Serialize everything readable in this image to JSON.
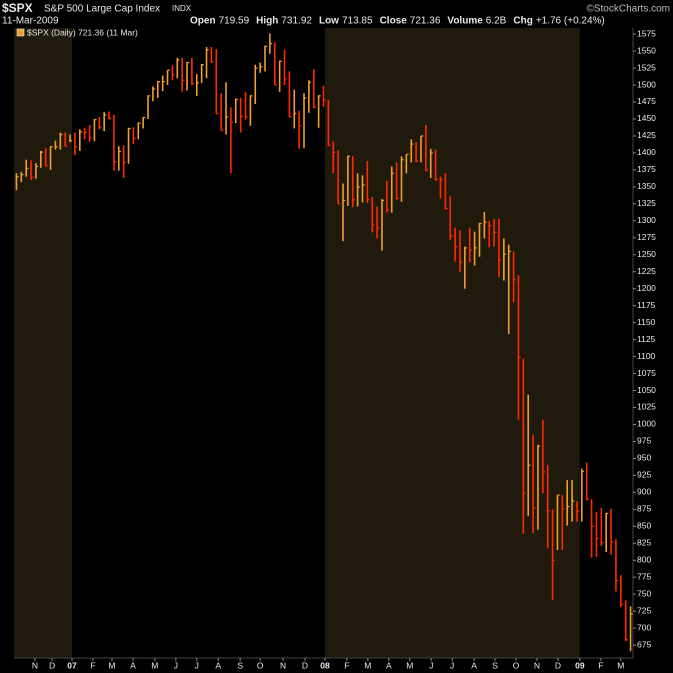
{
  "header": {
    "symbol": "$SPX",
    "name": "S&P 500 Large Cap Index",
    "exchange": "INDX",
    "date": "11-Mar-2009",
    "copyright": "©StockCharts.com",
    "quote": [
      [
        "Open",
        "719.59"
      ],
      [
        "High",
        "731.92"
      ],
      [
        "Low",
        "713.85"
      ],
      [
        "Close",
        "721.36"
      ],
      [
        "Volume",
        "6.2B"
      ],
      [
        "Chg",
        "+1.76 (+0.24%)"
      ]
    ]
  },
  "chart_data": {
    "type": "ohlc",
    "legend": "$SPX (Daily) 721.36 (11 Mar)",
    "colors": {
      "up": "#f0a030",
      "down": "#ff2a00",
      "shade": "#1f1a0c",
      "background": "#000000"
    },
    "grid": false,
    "ylim": [
      656,
      1584
    ],
    "yticks": [
      675,
      700,
      725,
      750,
      775,
      800,
      825,
      850,
      875,
      900,
      925,
      950,
      975,
      1000,
      1025,
      1050,
      1075,
      1100,
      1125,
      1150,
      1175,
      1200,
      1225,
      1250,
      1275,
      1300,
      1325,
      1350,
      1375,
      1400,
      1425,
      1450,
      1475,
      1500,
      1525,
      1550,
      1575
    ],
    "xlim": [
      0,
      127
    ],
    "xticks": [
      {
        "value": 4.3,
        "label": "N"
      },
      {
        "value": 7.8,
        "label": "D"
      },
      {
        "value": 11.9,
        "label": "07"
      },
      {
        "value": 16.2,
        "label": "F"
      },
      {
        "value": 20.1,
        "label": "M"
      },
      {
        "value": 24.4,
        "label": "A"
      },
      {
        "value": 28.9,
        "label": "M"
      },
      {
        "value": 33.2,
        "label": "J"
      },
      {
        "value": 37.5,
        "label": "J"
      },
      {
        "value": 41.9,
        "label": "A"
      },
      {
        "value": 46.4,
        "label": "S"
      },
      {
        "value": 50.5,
        "label": "O"
      },
      {
        "value": 55.2,
        "label": "N"
      },
      {
        "value": 59.7,
        "label": "D"
      },
      {
        "value": 63.8,
        "label": "08"
      },
      {
        "value": 68.3,
        "label": "F"
      },
      {
        "value": 72.6,
        "label": "M"
      },
      {
        "value": 76.9,
        "label": "A"
      },
      {
        "value": 81.2,
        "label": "M"
      },
      {
        "value": 85.6,
        "label": "J"
      },
      {
        "value": 89.9,
        "label": "J"
      },
      {
        "value": 94.4,
        "label": "A"
      },
      {
        "value": 98.7,
        "label": "S"
      },
      {
        "value": 103.0,
        "label": "O"
      },
      {
        "value": 107.3,
        "label": "N"
      },
      {
        "value": 111.6,
        "label": "D"
      },
      {
        "value": 116.1,
        "label": "09"
      },
      {
        "value": 120.4,
        "label": "F"
      },
      {
        "value": 124.5,
        "label": "M"
      }
    ],
    "high": [
      1370,
      1372,
      1390,
      1389,
      1385,
      1403,
      1407,
      1410,
      1418,
      1430,
      1430,
      1427,
      1430,
      1435,
      1437,
      1441,
      1450,
      1453,
      1460,
      1461,
      1456,
      1410,
      1411,
      1437,
      1438,
      1445,
      1453,
      1485,
      1498,
      1506,
      1514,
      1522,
      1529,
      1540,
      1540,
      1534,
      1540,
      1516,
      1531,
      1556,
      1556,
      1553,
      1488,
      1504,
      1467,
      1480,
      1481,
      1490,
      1485,
      1530,
      1533,
      1558,
      1576,
      1563,
      1536,
      1552,
      1520,
      1493,
      1462,
      1488,
      1507,
      1523,
      1485,
      1499,
      1478,
      1417,
      1404,
      1355,
      1396,
      1395,
      1370,
      1367,
      1388,
      1335,
      1321,
      1332,
      1359,
      1380,
      1386,
      1395,
      1398,
      1420,
      1416,
      1425,
      1441,
      1406,
      1405,
      1365,
      1370,
      1336,
      1290,
      1286,
      1262,
      1290,
      1284,
      1297,
      1313,
      1300,
      1303,
      1303,
      1274,
      1265,
      1255,
      1220,
      1097,
      1044,
      985,
      970,
      1007,
      940,
      875,
      896,
      896,
      918,
      918,
      887,
      935,
      944,
      890,
      871,
      877,
      870,
      876,
      831,
      778,
      741,
      732
    ],
    "low": [
      1345,
      1357,
      1365,
      1360,
      1362,
      1378,
      1380,
      1375,
      1405,
      1405,
      1410,
      1416,
      1397,
      1403,
      1420,
      1416,
      1417,
      1435,
      1432,
      1449,
      1374,
      1374,
      1363,
      1384,
      1413,
      1420,
      1436,
      1450,
      1476,
      1481,
      1491,
      1500,
      1507,
      1510,
      1490,
      1492,
      1500,
      1484,
      1503,
      1510,
      1533,
      1458,
      1433,
      1427,
      1370,
      1444,
      1430,
      1449,
      1440,
      1472,
      1518,
      1520,
      1546,
      1500,
      1490,
      1500,
      1453,
      1436,
      1406,
      1407,
      1459,
      1466,
      1437,
      1468,
      1411,
      1370,
      1325,
      1270,
      1322,
      1320,
      1321,
      1327,
      1326,
      1283,
      1274,
      1256,
      1312,
      1312,
      1331,
      1328,
      1370,
      1386,
      1386,
      1386,
      1373,
      1363,
      1359,
      1333,
      1317,
      1272,
      1240,
      1225,
      1200,
      1239,
      1234,
      1247,
      1274,
      1261,
      1262,
      1217,
      1212,
      1133,
      1180,
      1007,
      839,
      865,
      840,
      845,
      899,
      818,
      741,
      815,
      815,
      851,
      857,
      857,
      857,
      888,
      804,
      805,
      821,
      812,
      808,
      754,
      731,
      681,
      666
    ],
    "close": [
      1365,
      1368,
      1377,
      1364,
      1380,
      1401,
      1381,
      1409,
      1409,
      1427,
      1410,
      1418,
      1409,
      1431,
      1430,
      1422,
      1449,
      1438,
      1456,
      1451,
      1387,
      1402,
      1386,
      1436,
      1421,
      1444,
      1452,
      1484,
      1494,
      1505,
      1505,
      1522,
      1515,
      1537,
      1507,
      1533,
      1502,
      1503,
      1530,
      1552,
      1534,
      1458,
      1433,
      1453,
      1445,
      1479,
      1454,
      1453,
      1484,
      1525,
      1527,
      1557,
      1561,
      1500,
      1535,
      1509,
      1453,
      1458,
      1440,
      1481,
      1504,
      1467,
      1484,
      1478,
      1411,
      1401,
      1325,
      1330,
      1395,
      1331,
      1350,
      1353,
      1331,
      1294,
      1289,
      1330,
      1316,
      1370,
      1333,
      1390,
      1398,
      1413,
      1388,
      1425,
      1375,
      1400,
      1361,
      1360,
      1318,
      1278,
      1262,
      1239,
      1260,
      1257,
      1260,
      1296,
      1298,
      1293,
      1283,
      1242,
      1251,
      1255,
      1213,
      1099,
      899,
      940,
      877,
      968,
      930,
      873,
      800,
      896,
      876,
      879,
      887,
      872,
      931,
      890,
      850,
      832,
      826,
      869,
      827,
      770,
      735,
      683,
      721
    ]
  }
}
